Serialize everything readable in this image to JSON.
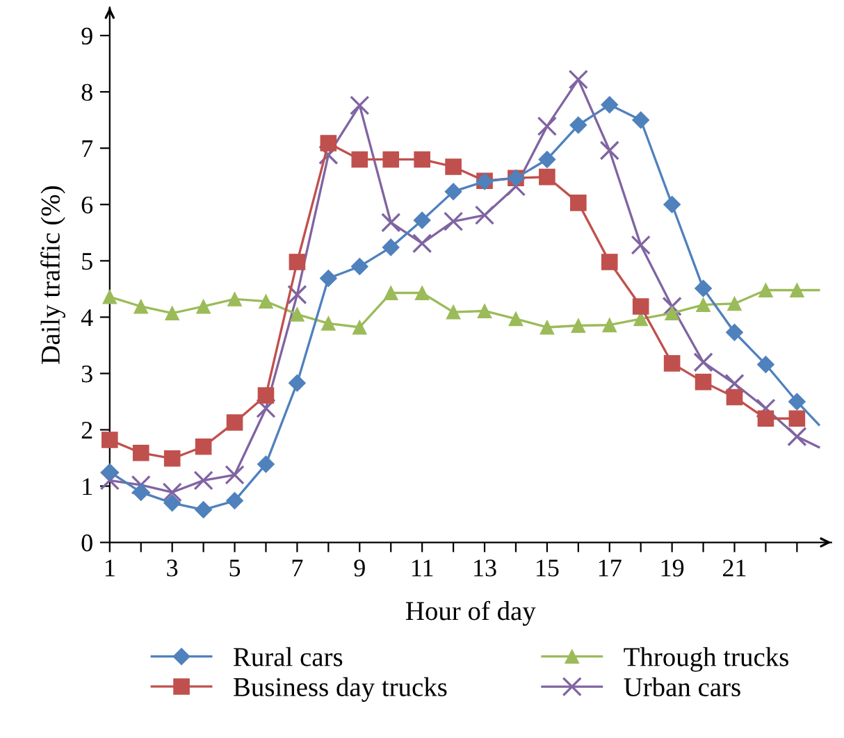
{
  "chart_data": {
    "type": "line",
    "xlabel": "Hour of day",
    "ylabel": "Daily traffic (%)",
    "x": [
      1,
      2,
      3,
      4,
      5,
      6,
      7,
      8,
      9,
      10,
      11,
      12,
      13,
      14,
      15,
      16,
      17,
      18,
      19,
      20,
      21,
      22,
      23
    ],
    "xlim": [
      1,
      24.1
    ],
    "ylim": [
      0,
      9.5
    ],
    "xticks": [
      1,
      {
        "value": 2,
        "label": null
      },
      3,
      {
        "value": 4,
        "label": null
      },
      5,
      {
        "value": 6,
        "label": null
      },
      7,
      {
        "value": 8,
        "label": null
      },
      9,
      {
        "value": 10,
        "label": null
      },
      11,
      {
        "value": 12,
        "label": null
      },
      13,
      {
        "value": 14,
        "label": null
      },
      15,
      {
        "value": 16,
        "label": null
      },
      17,
      {
        "value": 18,
        "label": null
      },
      19,
      {
        "value": 20,
        "label": null
      },
      21,
      {
        "value": 22,
        "label": null
      },
      {
        "value": 23,
        "label": null
      }
    ],
    "yticks": [
      0,
      1,
      2,
      3,
      4,
      5,
      6,
      7,
      8,
      9
    ],
    "grid": false,
    "legend": "bottom",
    "line_style": "solid",
    "series": [
      {
        "name": "Rural cars",
        "color": "#4f81bd",
        "marker": "diamond",
        "x": [
          1,
          2,
          3,
          4,
          5,
          6,
          7,
          8,
          9,
          10,
          11,
          12,
          13,
          14,
          15,
          16,
          17,
          18,
          19,
          20,
          21,
          22,
          23,
          23.7
        ],
        "values": [
          1.25,
          0.89,
          0.7,
          0.58,
          0.74,
          1.39,
          2.83,
          4.69,
          4.9,
          5.24,
          5.72,
          6.23,
          6.41,
          6.47,
          6.8,
          7.41,
          7.77,
          7.5,
          6.0,
          4.51,
          3.73,
          3.16,
          2.5,
          2.09
        ]
      },
      {
        "name": "Business day trucks",
        "color": "#c0504d",
        "marker": "square",
        "values": [
          1.82,
          1.59,
          1.49,
          1.7,
          2.13,
          2.61,
          4.98,
          7.09,
          6.8,
          6.8,
          6.8,
          6.67,
          6.42,
          6.47,
          6.49,
          6.03,
          4.98,
          4.19,
          3.18,
          2.85,
          2.58,
          2.2,
          2.2
        ]
      },
      {
        "name": "Through trucks",
        "color": "#9bbb59",
        "marker": "triangle",
        "x": [
          1,
          2,
          3,
          4,
          5,
          6,
          7,
          8,
          9,
          10,
          11,
          12,
          13,
          14,
          15,
          16,
          17,
          18,
          19,
          20,
          21,
          22,
          23,
          23.7
        ],
        "values": [
          4.36,
          4.19,
          4.07,
          4.19,
          4.32,
          4.28,
          4.05,
          3.89,
          3.82,
          4.43,
          4.43,
          4.09,
          4.11,
          3.97,
          3.82,
          3.85,
          3.86,
          3.97,
          4.07,
          4.22,
          4.24,
          4.48,
          4.48,
          4.48
        ]
      },
      {
        "name": "Urban cars",
        "color": "#8064a2",
        "marker": "cross",
        "x": [
          1,
          2,
          3,
          4,
          5,
          6,
          7,
          8,
          9,
          10,
          11,
          12,
          13,
          14,
          15,
          16,
          17,
          18,
          19,
          20,
          21,
          22,
          23,
          23.7
        ],
        "values": [
          1.1,
          1.02,
          0.89,
          1.1,
          1.2,
          2.38,
          4.4,
          6.88,
          7.76,
          5.68,
          5.31,
          5.7,
          5.81,
          6.32,
          7.39,
          8.22,
          6.96,
          5.28,
          4.19,
          3.2,
          2.82,
          2.38,
          1.88,
          1.69
        ]
      }
    ]
  }
}
